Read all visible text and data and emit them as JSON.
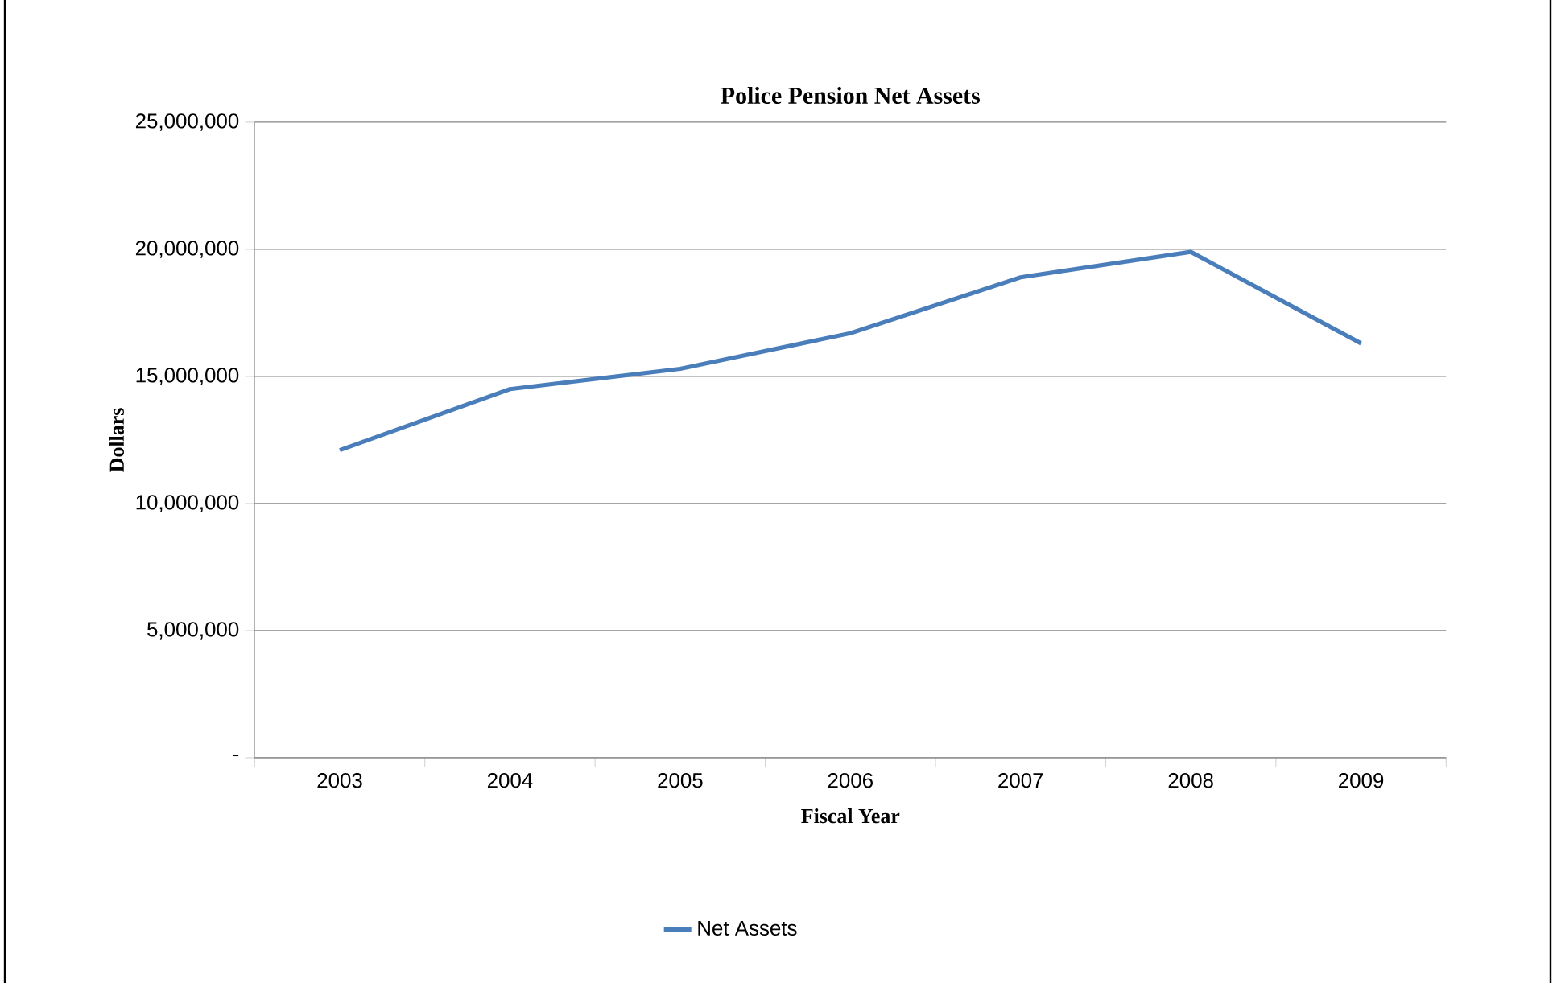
{
  "chart_data": {
    "type": "line",
    "title": "Police Pension Net Assets",
    "xlabel": "Fiscal Year",
    "ylabel": "Dollars",
    "categories": [
      "2003",
      "2004",
      "2005",
      "2006",
      "2007",
      "2008",
      "2009"
    ],
    "series": [
      {
        "name": "Net Assets",
        "color": "#4a7ebb",
        "values": [
          12100000,
          14500000,
          15300000,
          16700000,
          18900000,
          19900000,
          16300000
        ]
      }
    ],
    "ylim": [
      0,
      25000000
    ],
    "yticks": [
      {
        "value": 0,
        "label": "-"
      },
      {
        "value": 5000000,
        "label": "5,000,000"
      },
      {
        "value": 10000000,
        "label": "10,000,000"
      },
      {
        "value": 15000000,
        "label": "15,000,000"
      },
      {
        "value": 20000000,
        "label": "20,000,000"
      },
      {
        "value": 25000000,
        "label": "25,000,000"
      }
    ],
    "grid": "y",
    "legend": "bottom",
    "marker": "none",
    "line_style": "solid"
  }
}
